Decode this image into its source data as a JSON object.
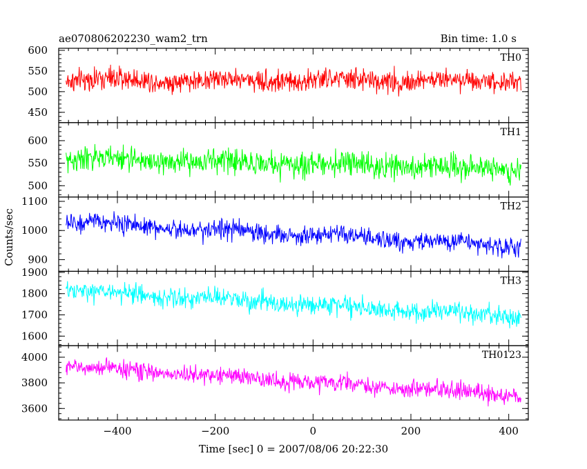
{
  "header": {
    "title": "ae070806202230_wam2_trn",
    "bin_time": "Bin time: 1.0 s"
  },
  "chart_data": {
    "type": "line",
    "shared_x": true,
    "xlabel": "Time [sec] 0 = 2007/08/06 20:22:30",
    "ylabel": "Counts/sec",
    "xlim": [
      -520,
      440
    ],
    "xticks": [
      -400,
      -200,
      0,
      200,
      400
    ],
    "x_range_data": [
      -505,
      425
    ],
    "bin_time_s": 1.0,
    "panels": [
      {
        "name": "TH0",
        "color": "#ff0000",
        "ylim": [
          425,
          605
        ],
        "yticks": [
          450,
          500,
          550,
          600
        ],
        "start_level": 528,
        "end_level": 527,
        "noise_sd": 26
      },
      {
        "name": "TH1",
        "color": "#00ff00",
        "ylim": [
          475,
          640
        ],
        "yticks": [
          500,
          550,
          600
        ],
        "start_level": 560,
        "end_level": 538,
        "noise_sd": 26
      },
      {
        "name": "TH2",
        "color": "#0000ff",
        "ylim": [
          860,
          1115
        ],
        "yticks": [
          900,
          1000,
          1100
        ],
        "start_level": 1030,
        "end_level": 945,
        "noise_sd": 32
      },
      {
        "name": "TH3",
        "color": "#00ffff",
        "ylim": [
          1555,
          1905
        ],
        "yticks": [
          1600,
          1700,
          1800,
          1900
        ],
        "start_level": 1815,
        "end_level": 1690,
        "noise_sd": 45
      },
      {
        "name": "TH0123",
        "color": "#ff00ff",
        "ylim": [
          3510,
          4090
        ],
        "yticks": [
          3600,
          3800,
          4000
        ],
        "start_level": 3930,
        "end_level": 3700,
        "noise_sd": 65
      }
    ]
  }
}
